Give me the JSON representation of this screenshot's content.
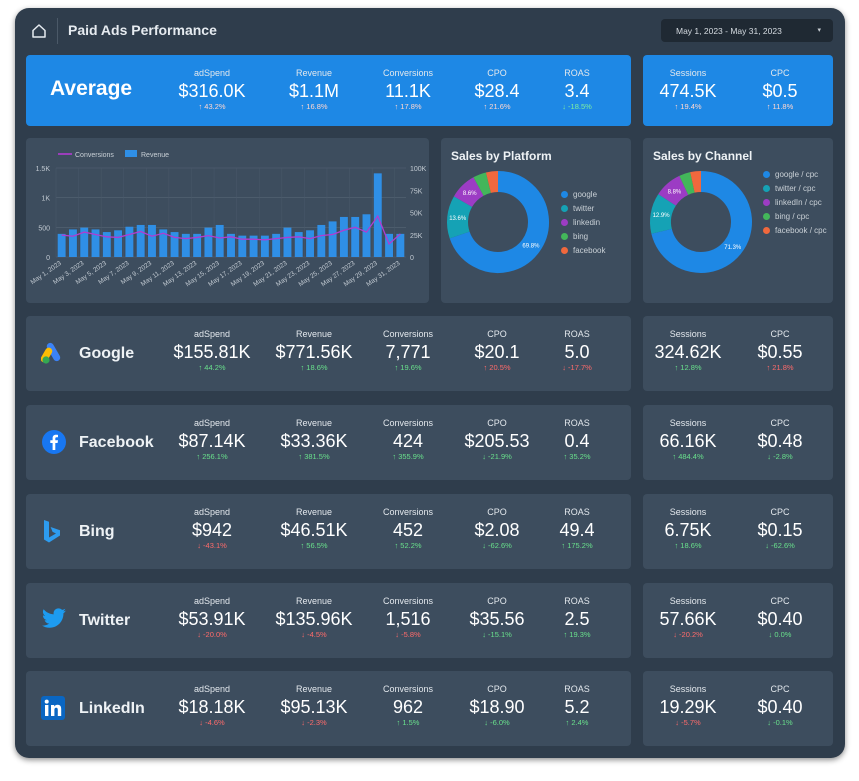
{
  "header": {
    "title": "Paid Ads Performance",
    "date_range": "May 1, 2023 - May 31, 2023",
    "home_icon": "home-icon",
    "date_arrow": "▾"
  },
  "average": {
    "label": "Average",
    "metrics": [
      {
        "label": "adSpend",
        "value": "$316.0K",
        "delta": "↑ 43.2%"
      },
      {
        "label": "Revenue",
        "value": "$1.1M",
        "delta": "↑ 16.8%"
      },
      {
        "label": "Conversions",
        "value": "11.1K",
        "delta": "↑ 17.8%"
      },
      {
        "label": "CPO",
        "value": "$28.4",
        "delta": "↑ 21.6%"
      },
      {
        "label": "ROAS",
        "value": "3.4",
        "delta": "↓ -18.5%"
      }
    ],
    "side": [
      {
        "label": "Sessions",
        "value": "474.5K",
        "delta": "↑ 19.4%"
      },
      {
        "label": "CPC",
        "value": "$0.5",
        "delta": "↑ 11.8%"
      }
    ]
  },
  "platforms": [
    {
      "name": "Google",
      "icon": "google-ads-icon",
      "metrics": [
        {
          "label": "adSpend",
          "value": "$155.81K",
          "delta": "↑ 44.2%",
          "dir": "up"
        },
        {
          "label": "Revenue",
          "value": "$771.56K",
          "delta": "↑ 18.6%",
          "dir": "up"
        },
        {
          "label": "Conversions",
          "value": "7,771",
          "delta": "↑ 19.6%",
          "dir": "up"
        },
        {
          "label": "CPO",
          "value": "$20.1",
          "delta": "↑ 20.5%",
          "dir": "down"
        },
        {
          "label": "ROAS",
          "value": "5.0",
          "delta": "↓ -17.7%",
          "dir": "down"
        }
      ],
      "side": [
        {
          "label": "Sessions",
          "value": "324.62K",
          "delta": "↑ 12.8%",
          "dir": "up"
        },
        {
          "label": "CPC",
          "value": "$0.55",
          "delta": "↑ 21.8%",
          "dir": "down"
        }
      ]
    },
    {
      "name": "Facebook",
      "icon": "facebook-icon",
      "metrics": [
        {
          "label": "adSpend",
          "value": "$87.14K",
          "delta": "↑ 256.1%",
          "dir": "up"
        },
        {
          "label": "Revenue",
          "value": "$33.36K",
          "delta": "↑ 381.5%",
          "dir": "up"
        },
        {
          "label": "Conversions",
          "value": "424",
          "delta": "↑ 355.9%",
          "dir": "up"
        },
        {
          "label": "CPO",
          "value": "$205.53",
          "delta": "↓ -21.9%",
          "dir": "up"
        },
        {
          "label": "ROAS",
          "value": "0.4",
          "delta": "↑ 35.2%",
          "dir": "up"
        }
      ],
      "side": [
        {
          "label": "Sessions",
          "value": "66.16K",
          "delta": "↑ 484.4%",
          "dir": "up"
        },
        {
          "label": "CPC",
          "value": "$0.48",
          "delta": "↓ -2.8%",
          "dir": "up"
        }
      ]
    },
    {
      "name": "Bing",
      "icon": "bing-icon",
      "metrics": [
        {
          "label": "adSpend",
          "value": "$942",
          "delta": "↓ -43.1%",
          "dir": "down"
        },
        {
          "label": "Revenue",
          "value": "$46.51K",
          "delta": "↑ 56.5%",
          "dir": "up"
        },
        {
          "label": "Conversions",
          "value": "452",
          "delta": "↑ 52.2%",
          "dir": "up"
        },
        {
          "label": "CPO",
          "value": "$2.08",
          "delta": "↓ -62.6%",
          "dir": "up"
        },
        {
          "label": "ROAS",
          "value": "49.4",
          "delta": "↑ 175.2%",
          "dir": "up"
        }
      ],
      "side": [
        {
          "label": "Sessions",
          "value": "6.75K",
          "delta": "↑ 18.6%",
          "dir": "up"
        },
        {
          "label": "CPC",
          "value": "$0.15",
          "delta": "↓ -62.6%",
          "dir": "up"
        }
      ]
    },
    {
      "name": "Twitter",
      "icon": "twitter-icon",
      "metrics": [
        {
          "label": "adSpend",
          "value": "$53.91K",
          "delta": "↓ -20.0%",
          "dir": "down"
        },
        {
          "label": "Revenue",
          "value": "$135.96K",
          "delta": "↓ -4.5%",
          "dir": "down"
        },
        {
          "label": "Conversions",
          "value": "1,516",
          "delta": "↓ -5.8%",
          "dir": "down"
        },
        {
          "label": "CPO",
          "value": "$35.56",
          "delta": "↓ -15.1%",
          "dir": "up"
        },
        {
          "label": "ROAS",
          "value": "2.5",
          "delta": "↑ 19.3%",
          "dir": "up"
        }
      ],
      "side": [
        {
          "label": "Sessions",
          "value": "57.66K",
          "delta": "↓ -20.2%",
          "dir": "down"
        },
        {
          "label": "CPC",
          "value": "$0.40",
          "delta": "↓ 0.0%",
          "dir": "up"
        }
      ]
    },
    {
      "name": "LinkedIn",
      "icon": "linkedin-icon",
      "metrics": [
        {
          "label": "adSpend",
          "value": "$18.18K",
          "delta": "↓ -4.6%",
          "dir": "down"
        },
        {
          "label": "Revenue",
          "value": "$95.13K",
          "delta": "↓ -2.3%",
          "dir": "down"
        },
        {
          "label": "Conversions",
          "value": "962",
          "delta": "↑ 1.5%",
          "dir": "up"
        },
        {
          "label": "CPO",
          "value": "$18.90",
          "delta": "↓ -6.0%",
          "dir": "up"
        },
        {
          "label": "ROAS",
          "value": "5.2",
          "delta": "↑ 2.4%",
          "dir": "up"
        }
      ],
      "side": [
        {
          "label": "Sessions",
          "value": "19.29K",
          "delta": "↓ -5.7%",
          "dir": "down"
        },
        {
          "label": "CPC",
          "value": "$0.40",
          "delta": "↓ -0.1%",
          "dir": "up"
        }
      ]
    }
  ],
  "colors": {
    "up": "#69e08c",
    "down": "#ff6b6b",
    "accent": "#1e88e5"
  },
  "chart_data": [
    {
      "type": "bar",
      "series": [
        {
          "name": "Conversions",
          "kind": "line",
          "color": "#b23bd1",
          "axis": "left",
          "values": [
            370,
            350,
            420,
            380,
            340,
            330,
            380,
            430,
            350,
            400,
            330,
            310,
            330,
            360,
            320,
            340,
            300,
            300,
            290,
            310,
            330,
            340,
            310,
            360,
            380,
            450,
            500,
            420,
            690,
            220,
            390
          ]
        },
        {
          "name": "Revenue",
          "kind": "bar",
          "color": "#2f8fe6",
          "axis": "right",
          "values": [
            26000,
            31000,
            33000,
            31000,
            28000,
            30000,
            34000,
            36000,
            36000,
            31000,
            28000,
            26000,
            26000,
            33000,
            36000,
            26000,
            24000,
            24000,
            24000,
            26000,
            33000,
            28000,
            30000,
            36000,
            40000,
            45000,
            45000,
            48000,
            94000,
            26000,
            26000
          ]
        }
      ],
      "x": [
        "May 1, 2023",
        "May 2, 2023",
        "May 3, 2023",
        "May 4, 2023",
        "May 5, 2023",
        "May 6, 2023",
        "May 7, 2023",
        "May 8, 2023",
        "May 9, 2023",
        "May 10, 2023",
        "May 11, 2023",
        "May 12, 2023",
        "May 13, 2023",
        "May 14, 2023",
        "May 15, 2023",
        "May 16, 2023",
        "May 17, 2023",
        "May 18, 2023",
        "May 19, 2023",
        "May 20, 2023",
        "May 21, 2023",
        "May 22, 2023",
        "May 23, 2023",
        "May 24, 2023",
        "May 25, 2023",
        "May 26, 2023",
        "May 27, 2023",
        "May 28, 2023",
        "May 29, 2023",
        "May 30, 2023",
        "May 31, 2023"
      ],
      "x_tick_labels": [
        "May 1, 2023",
        "May 3, 2023",
        "May 5, 2023",
        "May 7, 2023",
        "May 9, 2023",
        "May 11, 2023",
        "May 13, 2023",
        "May 15, 2023",
        "May 17, 2023",
        "May 19, 2023",
        "May 21, 2023",
        "May 23, 2023",
        "May 25, 2023",
        "May 27, 2023",
        "May 29, 2023",
        "May 31, 2023"
      ],
      "y_left_ticks": [
        "0",
        "500",
        "1K",
        "1.5K"
      ],
      "y_right_ticks": [
        "0",
        "25K",
        "50K",
        "75K",
        "100K"
      ],
      "ylim_left": [
        0,
        1500
      ],
      "ylim_right": [
        0,
        100000
      ],
      "grid": true,
      "legend": "top-left"
    },
    {
      "type": "pie",
      "title": "Sales by Platform",
      "slices": [
        {
          "label": "google",
          "value": 69.8,
          "color": "#1e88e5",
          "text": "69.8%"
        },
        {
          "label": "twitter",
          "value": 13.6,
          "color": "#15a2b5",
          "text": "13.6%"
        },
        {
          "label": "linkedin",
          "value": 8.6,
          "color": "#9c3cc4",
          "text": "8.6%"
        },
        {
          "label": "bing",
          "value": 4.2,
          "color": "#43b65a",
          "text": ""
        },
        {
          "label": "facebook",
          "value": 3.8,
          "color": "#f0683d",
          "text": ""
        }
      ]
    },
    {
      "type": "pie",
      "title": "Sales by Channel",
      "slices": [
        {
          "label": "google / cpc",
          "value": 71.3,
          "color": "#1e88e5",
          "text": "71.3%"
        },
        {
          "label": "twitter / cpc",
          "value": 12.9,
          "color": "#15a2b5",
          "text": "12.9%"
        },
        {
          "label": "linkedIn / cpc",
          "value": 8.8,
          "color": "#9c3cc4",
          "text": "8.8%"
        },
        {
          "label": "bing / cpc",
          "value": 3.6,
          "color": "#43b65a",
          "text": ""
        },
        {
          "label": "facebook / cpc",
          "value": 3.4,
          "color": "#f0683d",
          "text": ""
        }
      ]
    }
  ]
}
